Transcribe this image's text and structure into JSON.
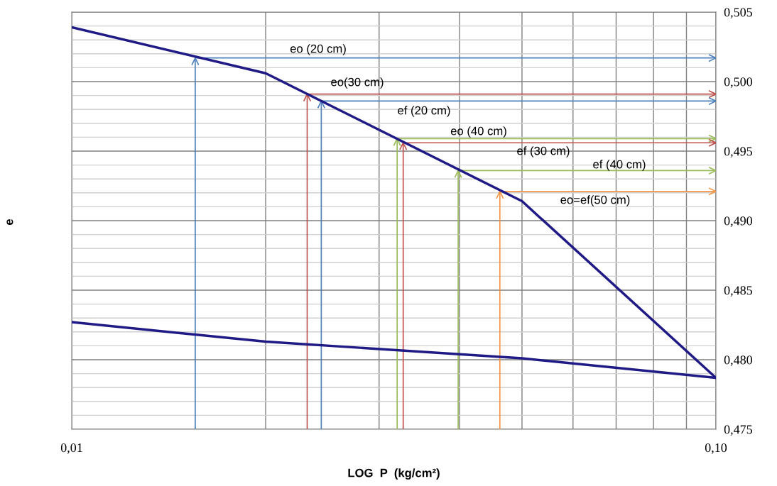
{
  "chart_data": {
    "type": "line",
    "xlabel": "LOG  P  (kg/cm²)",
    "ylabel": "e",
    "log": "x",
    "grid": true,
    "marker": "none",
    "xlim": [
      0.01,
      0.1
    ],
    "ylim": [
      0.475,
      0.505
    ],
    "xticks": [
      {
        "value": 0.01,
        "label": "0,01"
      },
      {
        "value": 0.02,
        "label": null
      },
      {
        "value": 0.03,
        "label": null
      },
      {
        "value": 0.04,
        "label": null
      },
      {
        "value": 0.05,
        "label": null
      },
      {
        "value": 0.06,
        "label": null
      },
      {
        "value": 0.07,
        "label": null
      },
      {
        "value": 0.08,
        "label": null
      },
      {
        "value": 0.09,
        "label": null
      },
      {
        "value": 0.1,
        "label": "0,10"
      }
    ],
    "yticks": [
      {
        "value": 0.475,
        "label": "0,475"
      },
      {
        "value": 0.476,
        "label": null
      },
      {
        "value": 0.477,
        "label": null
      },
      {
        "value": 0.478,
        "label": null
      },
      {
        "value": 0.479,
        "label": null
      },
      {
        "value": 0.48,
        "label": "0,480"
      },
      {
        "value": 0.481,
        "label": null
      },
      {
        "value": 0.482,
        "label": null
      },
      {
        "value": 0.483,
        "label": null
      },
      {
        "value": 0.484,
        "label": null
      },
      {
        "value": 0.485,
        "label": "0,485"
      },
      {
        "value": 0.486,
        "label": null
      },
      {
        "value": 0.487,
        "label": null
      },
      {
        "value": 0.488,
        "label": null
      },
      {
        "value": 0.489,
        "label": null
      },
      {
        "value": 0.49,
        "label": "0,490"
      },
      {
        "value": 0.491,
        "label": null
      },
      {
        "value": 0.492,
        "label": null
      },
      {
        "value": 0.493,
        "label": null
      },
      {
        "value": 0.494,
        "label": null
      },
      {
        "value": 0.495,
        "label": "0,495"
      },
      {
        "value": 0.496,
        "label": null
      },
      {
        "value": 0.497,
        "label": null
      },
      {
        "value": 0.498,
        "label": null
      },
      {
        "value": 0.499,
        "label": null
      },
      {
        "value": 0.5,
        "label": "0,500"
      },
      {
        "value": 0.501,
        "label": null
      },
      {
        "value": 0.502,
        "label": null
      },
      {
        "value": 0.503,
        "label": null
      },
      {
        "value": 0.504,
        "label": null
      },
      {
        "value": 0.505,
        "label": "0,505"
      }
    ],
    "series": [
      {
        "color": "#1f1a85",
        "x": [
          0.01,
          0.02,
          0.05,
          0.1
        ],
        "values": [
          0.5039,
          0.5006,
          0.4914,
          0.4787
        ]
      },
      {
        "color": "#1f1a85",
        "x": [
          0.1,
          0.05,
          0.02,
          0.01
        ],
        "values": [
          0.4787,
          0.4801,
          0.4813,
          0.4827
        ]
      },
      {
        "color": "#4f81bd",
        "x": [
          0.01555,
          0.01555,
          0.1
        ],
        "values": [
          0.475,
          0.5017,
          0.5017
        ]
      },
      {
        "color": "#c0504d",
        "x": [
          0.0232,
          0.0232,
          0.1
        ],
        "values": [
          0.475,
          0.4991,
          0.4991
        ]
      },
      {
        "color": "#4f81bd",
        "x": [
          0.0244,
          0.0244,
          0.1
        ],
        "values": [
          0.475,
          0.4986,
          0.4986
        ]
      },
      {
        "color": "#9bbb59",
        "x": [
          0.032,
          0.032,
          0.1
        ],
        "values": [
          0.475,
          0.4959,
          0.4959
        ]
      },
      {
        "color": "#c0504d",
        "x": [
          0.0327,
          0.0327,
          0.1
        ],
        "values": [
          0.475,
          0.4956,
          0.4956
        ]
      },
      {
        "color": "#9bbb59",
        "x": [
          0.0398,
          0.0398,
          0.1
        ],
        "values": [
          0.475,
          0.4936,
          0.4936
        ]
      },
      {
        "color": "#f79646",
        "x": [
          0.0462,
          0.0462,
          0.1
        ],
        "values": [
          0.475,
          0.4921,
          0.4921
        ]
      }
    ],
    "annotations": [
      "eo (20 cm)",
      "eo(30 cm)",
      "ef (20 cm)",
      "eo (40 cm)",
      "ef (30 cm)",
      "ef (40 cm)",
      "eo=ef(50 cm)"
    ]
  }
}
